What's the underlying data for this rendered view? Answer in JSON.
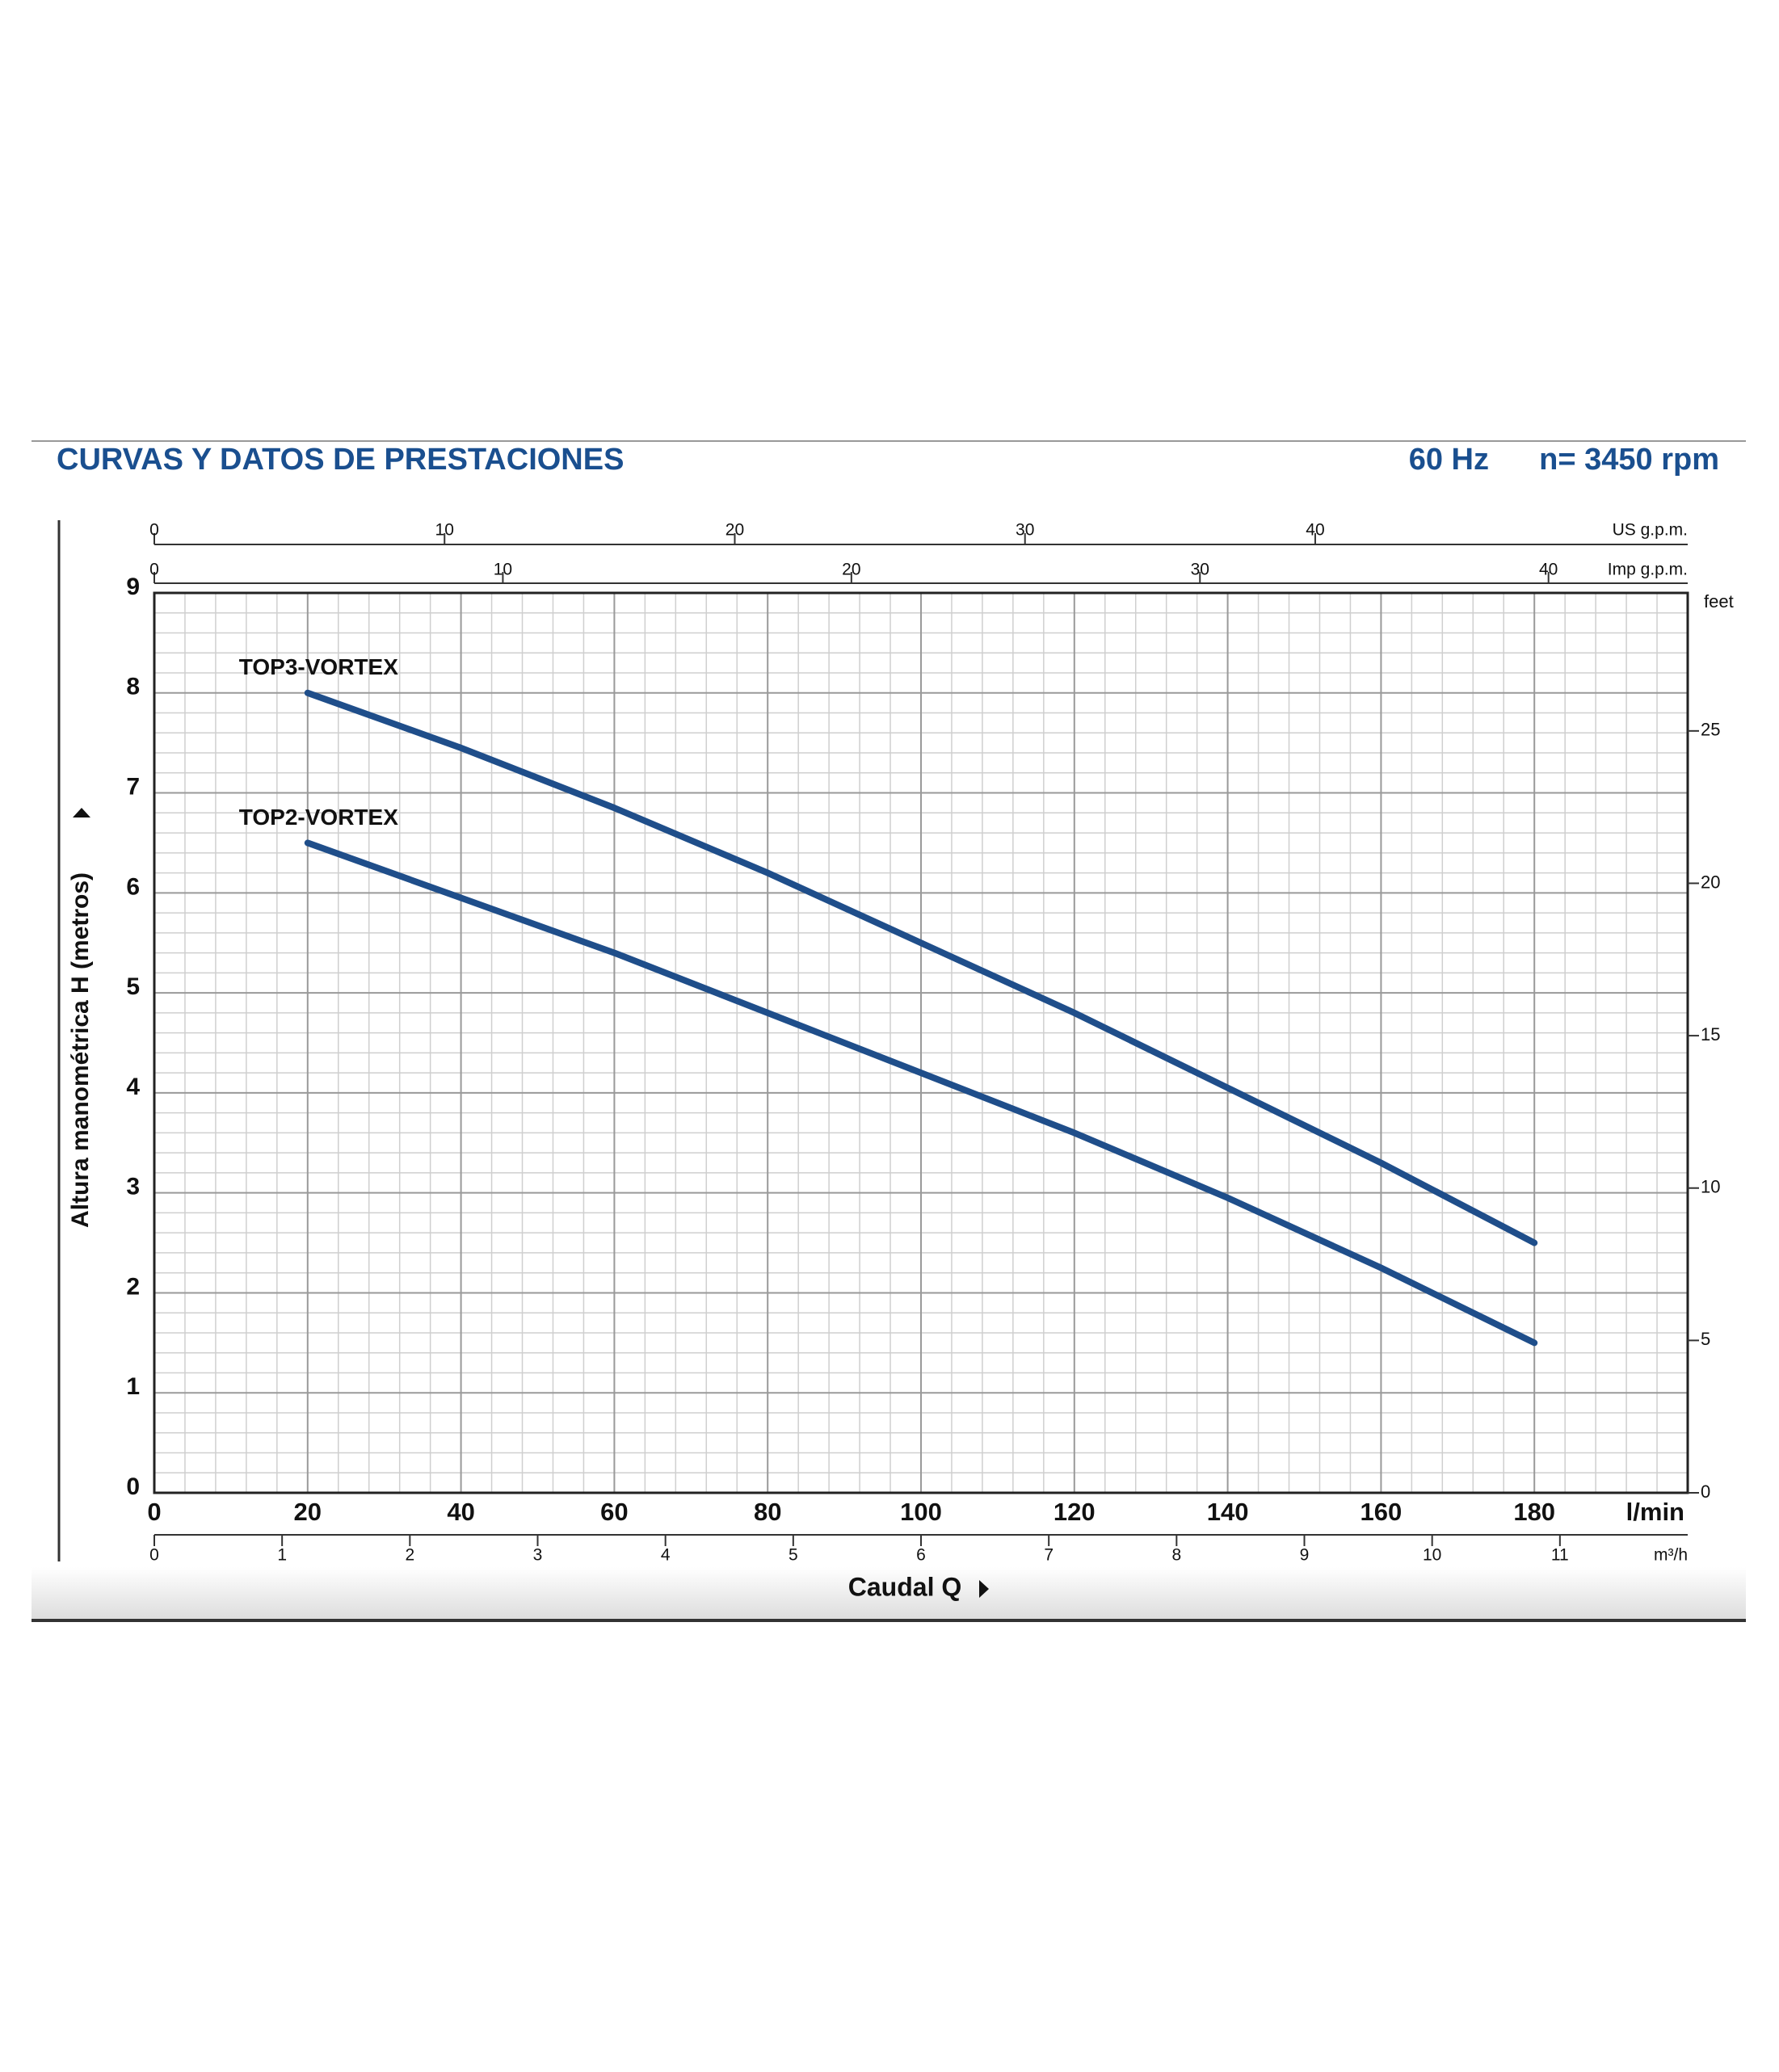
{
  "chart_data": {
    "type": "line",
    "title": "CURVAS Y DATOS DE PRESTACIONES",
    "frequency": "60 Hz",
    "speed": "n= 3450 rpm",
    "xlabel": "Caudal Q",
    "ylabel": "Altura manométrica H (metros)",
    "x": [
      20,
      40,
      60,
      80,
      100,
      120,
      140,
      160,
      180
    ],
    "series": [
      {
        "name": "TOP3-VORTEX",
        "color": "#1f4e8a",
        "values": [
          8.0,
          7.45,
          6.85,
          6.2,
          5.5,
          4.8,
          4.05,
          3.3,
          2.5
        ]
      },
      {
        "name": "TOP2-VORTEX",
        "color": "#1f4e8a",
        "values": [
          6.5,
          5.95,
          5.4,
          4.8,
          4.2,
          3.6,
          2.95,
          2.25,
          1.5
        ]
      }
    ],
    "xlim": [
      0,
      200
    ],
    "xticks": [
      0,
      20,
      40,
      60,
      80,
      100,
      120,
      140,
      160,
      180,
      {
        "value": 200,
        "label": "l/min"
      }
    ],
    "ylim": [
      0,
      9
    ],
    "yticks": [
      0,
      1,
      2,
      3,
      4,
      5,
      6,
      7,
      8,
      9
    ],
    "grid": true,
    "minor_grid": {
      "x": 4,
      "y": 0.2
    },
    "us_gpm": {
      "label": "US g.p.m.",
      "lim": [
        0,
        52.834
      ],
      "ticks": [
        0,
        10,
        20,
        30,
        40
      ]
    },
    "imp_gpm": {
      "label": "Imp g.p.m.",
      "lim": [
        0,
        43.994
      ],
      "ticks": [
        0,
        10,
        20,
        30,
        40
      ]
    },
    "m3h": {
      "label": "m³/h",
      "lim": [
        0,
        12
      ],
      "ticks": [
        0,
        1,
        2,
        3,
        4,
        5,
        6,
        7,
        8,
        9,
        10,
        11
      ]
    },
    "feet": {
      "label": "feet",
      "lim": [
        0,
        29.528
      ],
      "ticks": [
        0,
        5,
        10,
        15,
        20,
        25
      ]
    }
  }
}
